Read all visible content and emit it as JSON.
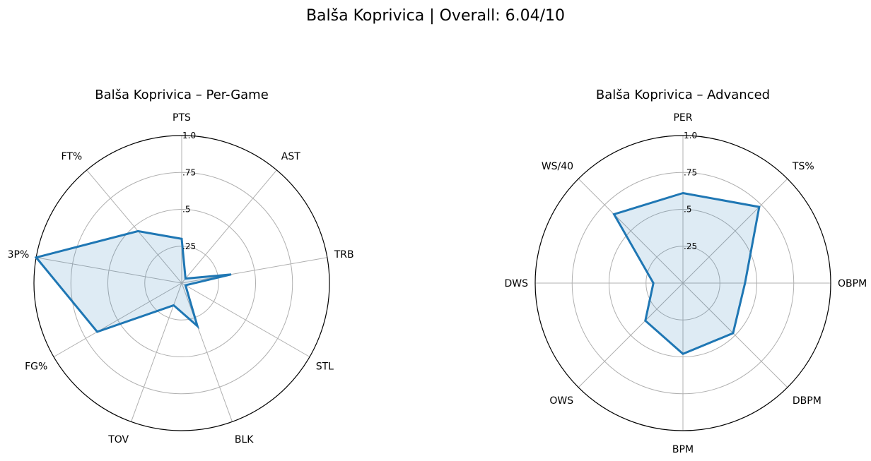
{
  "suptitle": "Balša Koprivica | Overall: 6.04/10",
  "chart_data": [
    {
      "type": "radar",
      "title": "Balša Koprivica – Per-Game",
      "categories": [
        "PTS",
        "AST",
        "TRB",
        "STL",
        "BLK",
        "TOV",
        "FG%",
        "3P%",
        "FT%"
      ],
      "values": [
        0.3,
        0.04,
        0.34,
        0.03,
        0.31,
        0.16,
        0.66,
        1.0,
        0.46
      ],
      "rlim": [
        0,
        1
      ],
      "rticks": [
        0.25,
        0.5,
        0.75,
        1.0
      ],
      "rtick_labels": [
        ".25",
        ".5",
        ".75",
        "1.0"
      ],
      "grid": true,
      "colors": {
        "line": "#1f77b4",
        "fill": "#1f77b4",
        "grid": "#b0b0b0",
        "frame": "#000000"
      }
    },
    {
      "type": "radar",
      "title": "Balša Koprivica – Advanced",
      "categories": [
        "PER",
        "TS%",
        "OBPM",
        "DBPM",
        "BPM",
        "OWS",
        "DWS",
        "WS/40"
      ],
      "values": [
        0.61,
        0.73,
        0.42,
        0.48,
        0.48,
        0.36,
        0.2,
        0.66
      ],
      "rlim": [
        0,
        1
      ],
      "rticks": [
        0.25,
        0.5,
        0.75,
        1.0
      ],
      "rtick_labels": [
        ".25",
        ".5",
        ".75",
        "1.0"
      ],
      "grid": true,
      "colors": {
        "line": "#1f77b4",
        "fill": "#1f77b4",
        "grid": "#b0b0b0",
        "frame": "#000000"
      }
    }
  ]
}
